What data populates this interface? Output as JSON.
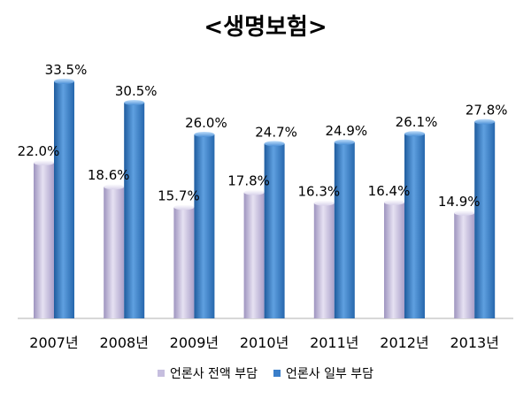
{
  "chart_data": {
    "type": "bar",
    "title": "<생명보험>",
    "categories": [
      "2007년",
      "2008년",
      "2009년",
      "2010년",
      "2011년",
      "2012년",
      "2013년"
    ],
    "series": [
      {
        "name": "언론사 전액 부담",
        "values": [
          22.0,
          18.6,
          15.7,
          17.8,
          16.3,
          16.4,
          14.9
        ],
        "labels": [
          "22.0%",
          "18.6%",
          "15.7%",
          "17.8%",
          "16.3%",
          "16.4%",
          "14.9%"
        ],
        "color": "#c6bedf"
      },
      {
        "name": "언론사 일부 부담",
        "values": [
          33.5,
          30.5,
          26.0,
          24.7,
          24.9,
          26.1,
          27.8
        ],
        "labels": [
          "33.5%",
          "30.5%",
          "26.0%",
          "24.7%",
          "24.9%",
          "26.1%",
          "27.8%"
        ],
        "color": "#3a7ec9"
      }
    ],
    "ylim": [
      0,
      40
    ],
    "grid": false,
    "legend_position": "bottom"
  }
}
